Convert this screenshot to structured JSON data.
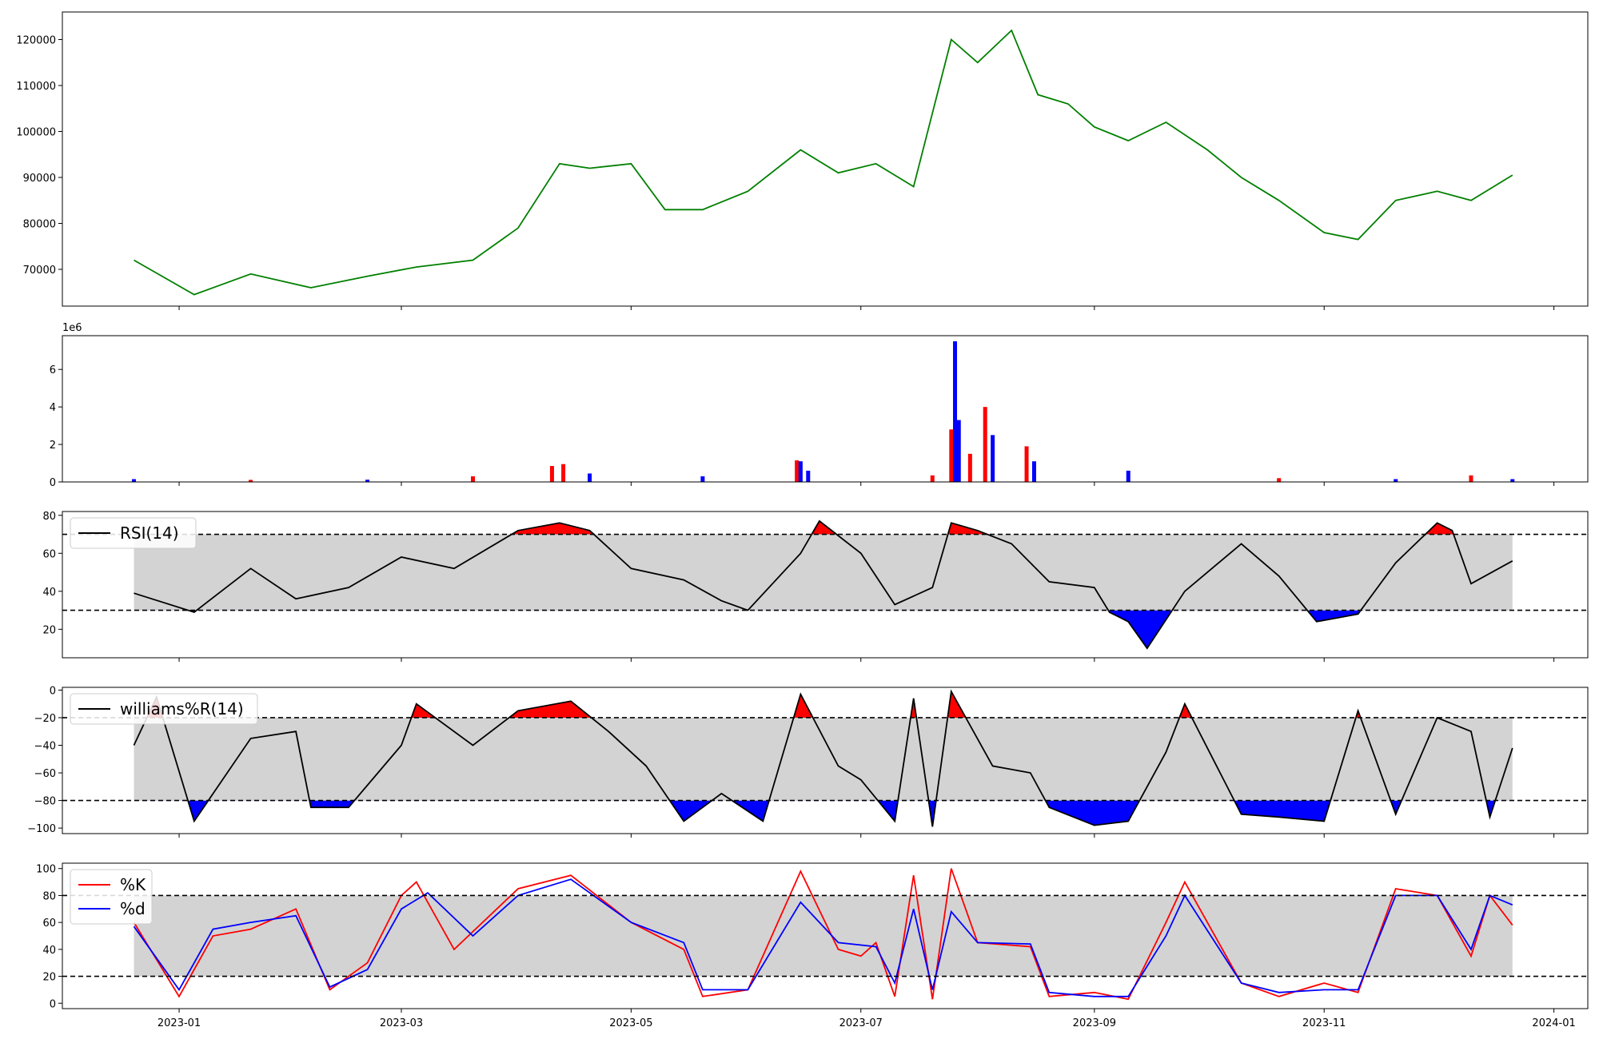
{
  "chart_data": [
    {
      "type": "line",
      "title": "",
      "ylim": [
        62000,
        126000
      ],
      "yticks": [
        70000,
        80000,
        90000,
        100000,
        110000,
        120000
      ],
      "color": "#008000",
      "x": [
        "2022-12-20",
        "2023-01-05",
        "2023-01-20",
        "2023-02-05",
        "2023-02-20",
        "2023-03-05",
        "2023-03-20",
        "2023-04-01",
        "2023-04-12",
        "2023-04-20",
        "2023-05-01",
        "2023-05-10",
        "2023-05-20",
        "2023-06-01",
        "2023-06-15",
        "2023-06-25",
        "2023-07-05",
        "2023-07-15",
        "2023-07-25",
        "2023-08-01",
        "2023-08-10",
        "2023-08-17",
        "2023-08-25",
        "2023-09-01",
        "2023-09-10",
        "2023-09-20",
        "2023-10-01",
        "2023-10-10",
        "2023-10-20",
        "2023-11-01",
        "2023-11-10",
        "2023-11-20",
        "2023-12-01",
        "2023-12-10",
        "2023-12-21"
      ],
      "y": [
        72000,
        64500,
        69000,
        66000,
        68500,
        70500,
        72000,
        79000,
        93000,
        92000,
        93000,
        83000,
        83000,
        87000,
        96000,
        91000,
        93000,
        88000,
        120000,
        115000,
        122000,
        108000,
        106000,
        101000,
        98000,
        102000,
        96000,
        90000,
        85000,
        78000,
        76500,
        85000,
        87000,
        85000,
        90500
      ]
    },
    {
      "type": "bar",
      "title": "",
      "ylim": [
        0,
        7800000
      ],
      "yticks": [
        0,
        2000000,
        4000000,
        6000000
      ],
      "ytick_labels": [
        "0",
        "2",
        "4",
        "6"
      ],
      "offset_label": "1e6",
      "x": [
        "2022-12-20",
        "2023-01-20",
        "2023-02-20",
        "2023-03-20",
        "2023-04-10",
        "2023-04-13",
        "2023-04-20",
        "2023-05-20",
        "2023-06-14",
        "2023-06-15",
        "2023-06-17",
        "2023-07-20",
        "2023-07-25",
        "2023-07-26",
        "2023-07-27",
        "2023-07-30",
        "2023-08-03",
        "2023-08-05",
        "2023-08-14",
        "2023-08-16",
        "2023-09-10",
        "2023-10-20",
        "2023-11-20",
        "2023-12-10",
        "2023-12-21"
      ],
      "values": [
        150000,
        110000,
        120000,
        300000,
        850000,
        950000,
        450000,
        300000,
        1150000,
        1100000,
        600000,
        350000,
        2800000,
        7500000,
        3300000,
        1500000,
        4000000,
        2500000,
        1900000,
        1100000,
        600000,
        200000,
        150000,
        350000,
        150000
      ],
      "bar_colors": [
        "blue",
        "red",
        "blue",
        "red",
        "red",
        "red",
        "blue",
        "blue",
        "red",
        "blue",
        "blue",
        "red",
        "red",
        "blue",
        "blue",
        "red",
        "red",
        "blue",
        "red",
        "blue",
        "blue",
        "red",
        "blue",
        "red",
        "blue"
      ]
    },
    {
      "type": "line",
      "title": "",
      "ylim": [
        5,
        82
      ],
      "yticks": [
        20,
        40,
        60,
        80
      ],
      "thresholds": [
        30,
        70
      ],
      "color": "#000000",
      "legend": [
        "RSI(14)"
      ],
      "x": [
        "2022-12-20",
        "2023-01-05",
        "2023-01-20",
        "2023-02-01",
        "2023-02-15",
        "2023-03-01",
        "2023-03-15",
        "2023-04-01",
        "2023-04-12",
        "2023-04-20",
        "2023-05-01",
        "2023-05-15",
        "2023-05-25",
        "2023-06-01",
        "2023-06-15",
        "2023-06-20",
        "2023-07-01",
        "2023-07-10",
        "2023-07-20",
        "2023-07-25",
        "2023-08-01",
        "2023-08-10",
        "2023-08-20",
        "2023-09-01",
        "2023-09-05",
        "2023-09-10",
        "2023-09-15",
        "2023-09-25",
        "2023-10-10",
        "2023-10-20",
        "2023-10-30",
        "2023-11-10",
        "2023-11-20",
        "2023-12-01",
        "2023-12-05",
        "2023-12-10",
        "2023-12-21"
      ],
      "y": [
        39,
        29,
        52,
        36,
        42,
        58,
        52,
        72,
        76,
        72,
        52,
        46,
        35,
        30,
        60,
        77,
        60,
        33,
        42,
        76,
        72,
        65,
        45,
        42,
        29,
        24,
        10,
        40,
        65,
        48,
        24,
        28,
        55,
        76,
        72,
        44,
        56
      ]
    },
    {
      "type": "line",
      "title": "",
      "ylim": [
        -104,
        2
      ],
      "yticks": [
        0,
        -20,
        -40,
        -60,
        -80,
        -100
      ],
      "thresholds": [
        -20,
        -80
      ],
      "color": "#000000",
      "legend": [
        "williams%R(14)"
      ],
      "x": [
        "2022-12-20",
        "2022-12-26",
        "2023-01-05",
        "2023-01-20",
        "2023-02-01",
        "2023-02-05",
        "2023-02-15",
        "2023-03-01",
        "2023-03-05",
        "2023-03-20",
        "2023-04-01",
        "2023-04-15",
        "2023-04-25",
        "2023-05-05",
        "2023-05-15",
        "2023-05-25",
        "2023-06-05",
        "2023-06-15",
        "2023-06-25",
        "2023-07-01",
        "2023-07-10",
        "2023-07-15",
        "2023-07-20",
        "2023-07-25",
        "2023-08-05",
        "2023-08-15",
        "2023-08-20",
        "2023-09-01",
        "2023-09-10",
        "2023-09-20",
        "2023-09-25",
        "2023-10-10",
        "2023-10-20",
        "2023-11-01",
        "2023-11-10",
        "2023-11-20",
        "2023-12-01",
        "2023-12-10",
        "2023-12-15",
        "2023-12-21"
      ],
      "y": [
        -40,
        -5,
        -95,
        -35,
        -30,
        -85,
        -85,
        -40,
        -10,
        -40,
        -15,
        -8,
        -30,
        -55,
        -95,
        -75,
        -95,
        -3,
        -55,
        -65,
        -95,
        -6,
        -99,
        -1,
        -55,
        -60,
        -85,
        -98,
        -95,
        -45,
        -10,
        -90,
        -92,
        -95,
        -15,
        -90,
        -20,
        -30,
        -92,
        -42
      ]
    },
    {
      "type": "line",
      "title": "",
      "ylim": [
        -4,
        104
      ],
      "yticks": [
        0,
        20,
        40,
        60,
        80,
        100
      ],
      "thresholds": [
        20,
        80
      ],
      "legend": [
        "%K",
        "%d"
      ],
      "series": [
        {
          "name": "%K",
          "color": "#ff0000",
          "x": [
            "2022-12-20",
            "2023-01-01",
            "2023-01-10",
            "2023-01-20",
            "2023-02-01",
            "2023-02-10",
            "2023-02-20",
            "2023-03-01",
            "2023-03-05",
            "2023-03-15",
            "2023-04-01",
            "2023-04-15",
            "2023-05-01",
            "2023-05-15",
            "2023-05-20",
            "2023-06-01",
            "2023-06-15",
            "2023-06-25",
            "2023-07-01",
            "2023-07-05",
            "2023-07-10",
            "2023-07-15",
            "2023-07-20",
            "2023-07-25",
            "2023-08-01",
            "2023-08-15",
            "2023-08-20",
            "2023-09-01",
            "2023-09-10",
            "2023-09-20",
            "2023-09-25",
            "2023-10-10",
            "2023-10-20",
            "2023-11-01",
            "2023-11-10",
            "2023-11-20",
            "2023-12-01",
            "2023-12-10",
            "2023-12-15",
            "2023-12-21"
          ],
          "y": [
            60,
            5,
            50,
            55,
            70,
            10,
            30,
            80,
            90,
            40,
            85,
            95,
            60,
            40,
            5,
            10,
            98,
            40,
            35,
            45,
            5,
            95,
            3,
            100,
            45,
            42,
            5,
            8,
            3,
            60,
            90,
            15,
            5,
            15,
            8,
            85,
            80,
            35,
            80,
            58
          ]
        },
        {
          "name": "%d",
          "color": "#0000ff",
          "x": [
            "2022-12-20",
            "2023-01-01",
            "2023-01-10",
            "2023-01-20",
            "2023-02-01",
            "2023-02-10",
            "2023-02-20",
            "2023-03-01",
            "2023-03-08",
            "2023-03-20",
            "2023-04-01",
            "2023-04-15",
            "2023-05-01",
            "2023-05-15",
            "2023-05-20",
            "2023-06-01",
            "2023-06-15",
            "2023-06-25",
            "2023-07-05",
            "2023-07-10",
            "2023-07-15",
            "2023-07-20",
            "2023-07-25",
            "2023-08-01",
            "2023-08-15",
            "2023-08-20",
            "2023-09-01",
            "2023-09-10",
            "2023-09-20",
            "2023-09-25",
            "2023-10-10",
            "2023-10-20",
            "2023-11-01",
            "2023-11-10",
            "2023-11-20",
            "2023-12-01",
            "2023-12-10",
            "2023-12-15",
            "2023-12-21"
          ],
          "y": [
            57,
            10,
            55,
            60,
            65,
            12,
            25,
            70,
            82,
            50,
            80,
            92,
            60,
            45,
            10,
            10,
            75,
            45,
            42,
            15,
            70,
            10,
            68,
            45,
            44,
            8,
            5,
            5,
            50,
            80,
            15,
            8,
            10,
            10,
            80,
            80,
            40,
            80,
            73
          ]
        }
      ]
    }
  ],
  "x_axis": {
    "start": "2022-12-01",
    "end": "2024-01-10",
    "ticks": [
      "2023-01",
      "2023-03",
      "2023-05",
      "2023-07",
      "2023-09",
      "2023-11",
      "2024-01"
    ]
  }
}
